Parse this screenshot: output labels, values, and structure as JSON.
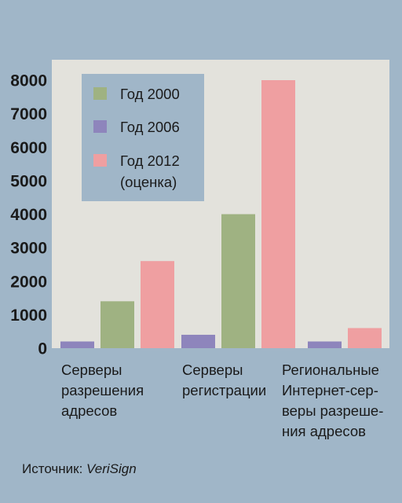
{
  "chart_data": {
    "type": "bar",
    "categories": [
      [
        "Серверы",
        "разрешения",
        "адресов"
      ],
      [
        "Серверы",
        "регистрации"
      ],
      [
        "Региональные",
        "Интернет-сер-",
        "веры разреше-",
        "ния адресов"
      ]
    ],
    "series": [
      {
        "name": "Год 2006",
        "color": "#8e85bc",
        "values": [
          200,
          400,
          200
        ]
      },
      {
        "name": "Год 2000",
        "color": "#9fb282",
        "values": [
          1400,
          4000,
          null
        ]
      },
      {
        "name": "Год 2012 (оценка)",
        "color": "#ef9fa1",
        "values": [
          2600,
          8000,
          600
        ]
      }
    ],
    "legend": [
      {
        "lines": [
          "Год 2000"
        ],
        "color": "#9fb282"
      },
      {
        "lines": [
          "Год 2006"
        ],
        "color": "#8e85bc"
      },
      {
        "lines": [
          "Год 2012",
          "(оценка)"
        ],
        "color": "#ef9fa1"
      }
    ],
    "legend_placement": "top-left",
    "yticks": [
      0,
      1000,
      2000,
      3000,
      4000,
      5000,
      6000,
      7000,
      8000
    ],
    "ylim": [
      0,
      8000
    ],
    "grid": false,
    "colors": {
      "background": "#a0b6c8",
      "plot_area": "#e3e2dc",
      "legend_box": "#a0b6c8"
    }
  },
  "source": {
    "label": "Источник:",
    "name": "VeriSign"
  }
}
